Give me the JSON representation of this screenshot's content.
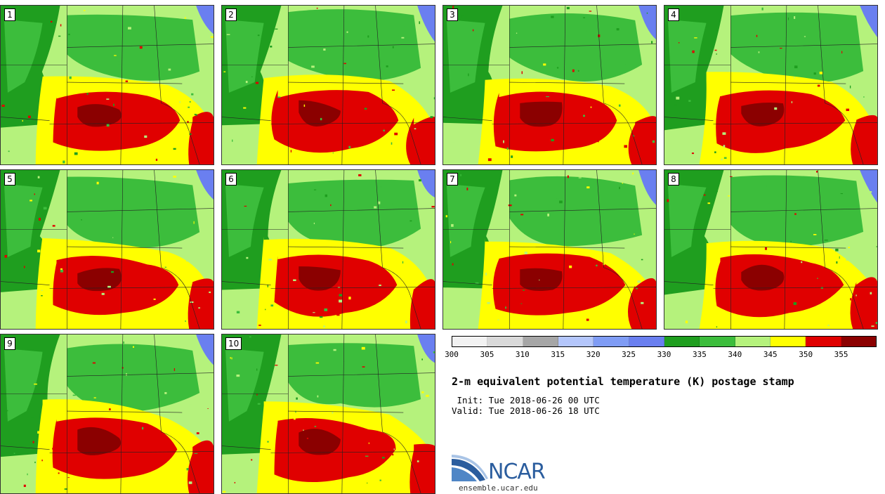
{
  "panels": [
    {
      "label": "1"
    },
    {
      "label": "2"
    },
    {
      "label": "3"
    },
    {
      "label": "4"
    },
    {
      "label": "5"
    },
    {
      "label": "6"
    },
    {
      "label": "7"
    },
    {
      "label": "8"
    },
    {
      "label": "9"
    },
    {
      "label": "10"
    }
  ],
  "colorbar": {
    "ticks": [
      "300",
      "305",
      "310",
      "315",
      "320",
      "325",
      "330",
      "335",
      "340",
      "345",
      "350",
      "355"
    ],
    "colors": [
      "#f2f2f2",
      "#d9d9d9",
      "#a6a6a6",
      "#b4c6fb",
      "#7f9cf5",
      "#6a7ff0",
      "#1f9e1f",
      "#3cbd3c",
      "#b5f27c",
      "#ffff00",
      "#e00000",
      "#8b0000"
    ]
  },
  "title": "2-m equivalent potential temperature (K) postage stamp",
  "init": " Init: Tue 2018-06-26 00 UTC",
  "valid": "Valid: Tue 2018-06-26 18 UTC",
  "logo": {
    "name": "NCAR",
    "url": "ensemble.ucar.edu"
  },
  "map_colors": {
    "water": "#6a7ff0",
    "dark_green": "#1f9e1f",
    "green": "#3cbd3c",
    "light_green": "#b5f27c",
    "yellow": "#ffff00",
    "red": "#e00000",
    "dark_red": "#8b0000"
  }
}
